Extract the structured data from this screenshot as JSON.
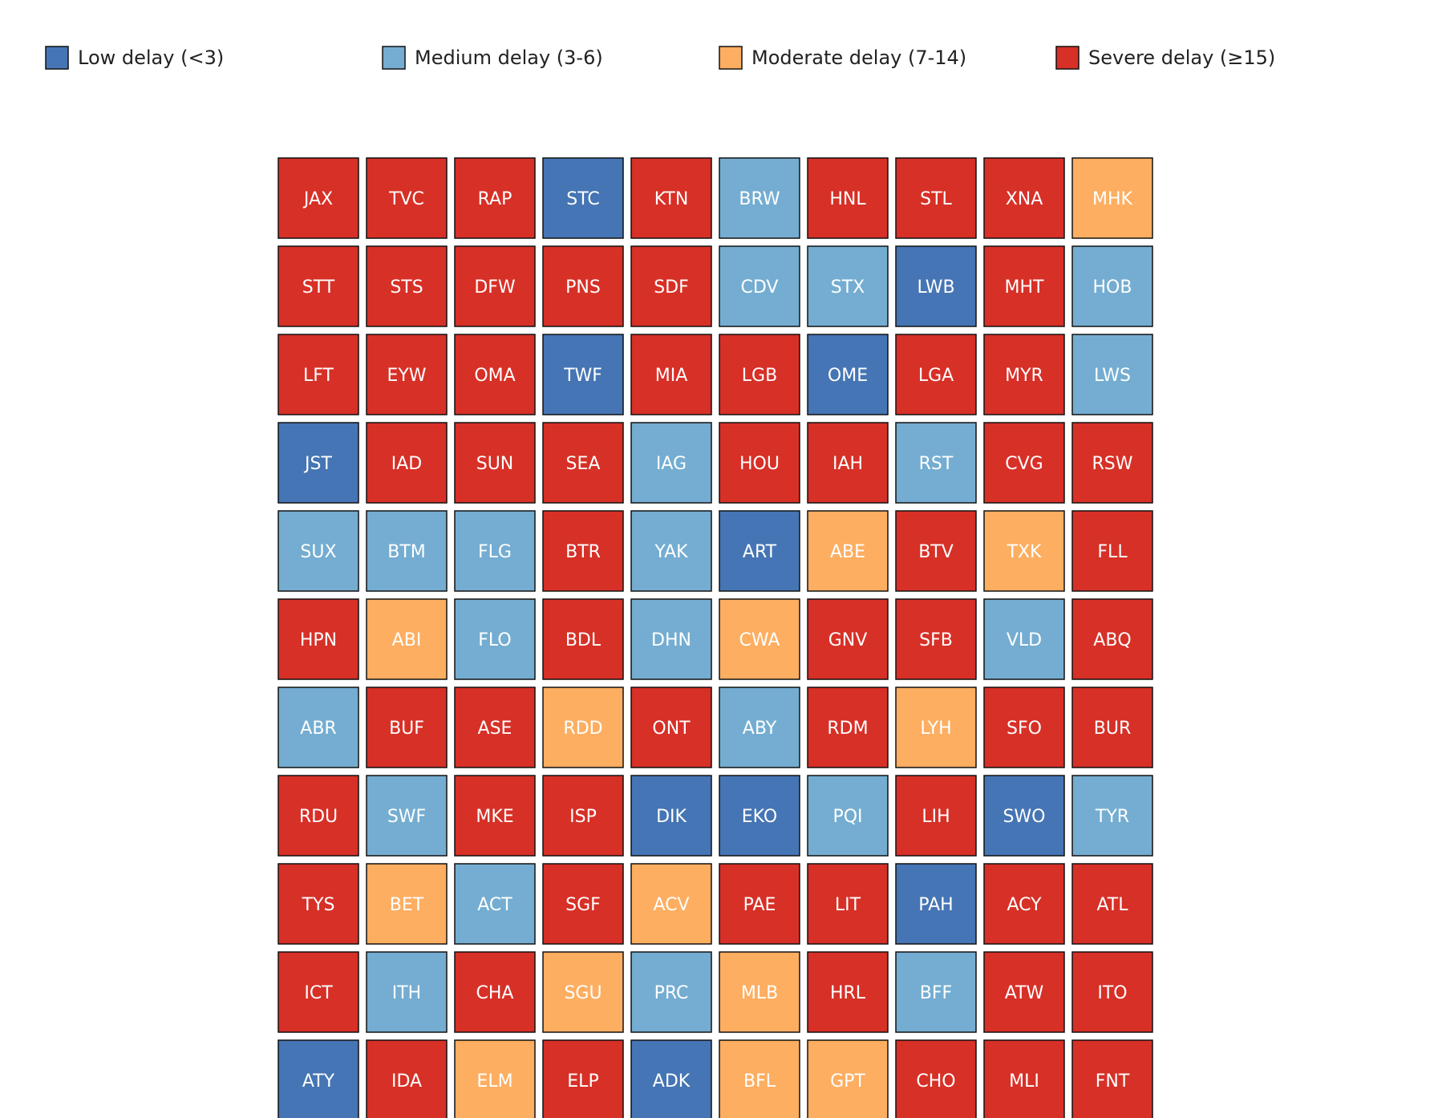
{
  "chart_data": {
    "type": "heatmap",
    "title": "",
    "rows": 11,
    "cols": 10,
    "categories": [
      {
        "key": "low",
        "label": "Low delay (<3)",
        "color": "#4575b4"
      },
      {
        "key": "medium",
        "label": "Medium delay (3-6)",
        "color": "#74add1"
      },
      {
        "key": "moderate",
        "label": "Moderate delay (7-14)",
        "color": "#fdae61"
      },
      {
        "key": "severe",
        "label": "Severe delay (≥15)",
        "color": "#d73027"
      }
    ],
    "legend_position": "top",
    "cells": [
      [
        [
          "JAX",
          "severe"
        ],
        [
          "TVC",
          "severe"
        ],
        [
          "RAP",
          "severe"
        ],
        [
          "STC",
          "low"
        ],
        [
          "KTN",
          "severe"
        ],
        [
          "BRW",
          "medium"
        ],
        [
          "HNL",
          "severe"
        ],
        [
          "STL",
          "severe"
        ],
        [
          "XNA",
          "severe"
        ],
        [
          "MHK",
          "moderate"
        ]
      ],
      [
        [
          "STT",
          "severe"
        ],
        [
          "STS",
          "severe"
        ],
        [
          "DFW",
          "severe"
        ],
        [
          "PNS",
          "severe"
        ],
        [
          "SDF",
          "severe"
        ],
        [
          "CDV",
          "medium"
        ],
        [
          "STX",
          "medium"
        ],
        [
          "LWB",
          "low"
        ],
        [
          "MHT",
          "severe"
        ],
        [
          "HOB",
          "medium"
        ]
      ],
      [
        [
          "LFT",
          "severe"
        ],
        [
          "EYW",
          "severe"
        ],
        [
          "OMA",
          "severe"
        ],
        [
          "TWF",
          "low"
        ],
        [
          "MIA",
          "severe"
        ],
        [
          "LGB",
          "severe"
        ],
        [
          "OME",
          "low"
        ],
        [
          "LGA",
          "severe"
        ],
        [
          "MYR",
          "severe"
        ],
        [
          "LWS",
          "medium"
        ]
      ],
      [
        [
          "JST",
          "low"
        ],
        [
          "IAD",
          "severe"
        ],
        [
          "SUN",
          "severe"
        ],
        [
          "SEA",
          "severe"
        ],
        [
          "IAG",
          "medium"
        ],
        [
          "HOU",
          "severe"
        ],
        [
          "IAH",
          "severe"
        ],
        [
          "RST",
          "medium"
        ],
        [
          "CVG",
          "severe"
        ],
        [
          "RSW",
          "severe"
        ]
      ],
      [
        [
          "SUX",
          "medium"
        ],
        [
          "BTM",
          "medium"
        ],
        [
          "FLG",
          "medium"
        ],
        [
          "BTR",
          "severe"
        ],
        [
          "YAK",
          "medium"
        ],
        [
          "ART",
          "low"
        ],
        [
          "ABE",
          "moderate"
        ],
        [
          "BTV",
          "severe"
        ],
        [
          "TXK",
          "moderate"
        ],
        [
          "FLL",
          "severe"
        ]
      ],
      [
        [
          "HPN",
          "severe"
        ],
        [
          "ABI",
          "moderate"
        ],
        [
          "FLO",
          "medium"
        ],
        [
          "BDL",
          "severe"
        ],
        [
          "DHN",
          "medium"
        ],
        [
          "CWA",
          "moderate"
        ],
        [
          "GNV",
          "severe"
        ],
        [
          "SFB",
          "severe"
        ],
        [
          "VLD",
          "medium"
        ],
        [
          "ABQ",
          "severe"
        ]
      ],
      [
        [
          "ABR",
          "medium"
        ],
        [
          "BUF",
          "severe"
        ],
        [
          "ASE",
          "severe"
        ],
        [
          "RDD",
          "moderate"
        ],
        [
          "ONT",
          "severe"
        ],
        [
          "ABY",
          "medium"
        ],
        [
          "RDM",
          "severe"
        ],
        [
          "LYH",
          "moderate"
        ],
        [
          "SFO",
          "severe"
        ],
        [
          "BUR",
          "severe"
        ]
      ],
      [
        [
          "RDU",
          "severe"
        ],
        [
          "SWF",
          "medium"
        ],
        [
          "MKE",
          "severe"
        ],
        [
          "ISP",
          "severe"
        ],
        [
          "DIK",
          "low"
        ],
        [
          "EKO",
          "low"
        ],
        [
          "PQI",
          "medium"
        ],
        [
          "LIH",
          "severe"
        ],
        [
          "SWO",
          "low"
        ],
        [
          "TYR",
          "medium"
        ]
      ],
      [
        [
          "TYS",
          "severe"
        ],
        [
          "BET",
          "moderate"
        ],
        [
          "ACT",
          "medium"
        ],
        [
          "SGF",
          "severe"
        ],
        [
          "ACV",
          "moderate"
        ],
        [
          "PAE",
          "severe"
        ],
        [
          "LIT",
          "severe"
        ],
        [
          "PAH",
          "low"
        ],
        [
          "ACY",
          "severe"
        ],
        [
          "ATL",
          "severe"
        ]
      ],
      [
        [
          "ICT",
          "severe"
        ],
        [
          "ITH",
          "medium"
        ],
        [
          "CHA",
          "severe"
        ],
        [
          "SGU",
          "moderate"
        ],
        [
          "PRC",
          "medium"
        ],
        [
          "MLB",
          "moderate"
        ],
        [
          "HRL",
          "severe"
        ],
        [
          "BFF",
          "medium"
        ],
        [
          "ATW",
          "severe"
        ],
        [
          "ITO",
          "severe"
        ]
      ],
      [
        [
          "ATY",
          "low"
        ],
        [
          "IDA",
          "severe"
        ],
        [
          "ELM",
          "moderate"
        ],
        [
          "ELP",
          "severe"
        ],
        [
          "ADK",
          "low"
        ],
        [
          "BFL",
          "moderate"
        ],
        [
          "GPT",
          "moderate"
        ],
        [
          "CHO",
          "severe"
        ],
        [
          "MLI",
          "severe"
        ],
        [
          "FNT",
          "severe"
        ]
      ]
    ]
  }
}
